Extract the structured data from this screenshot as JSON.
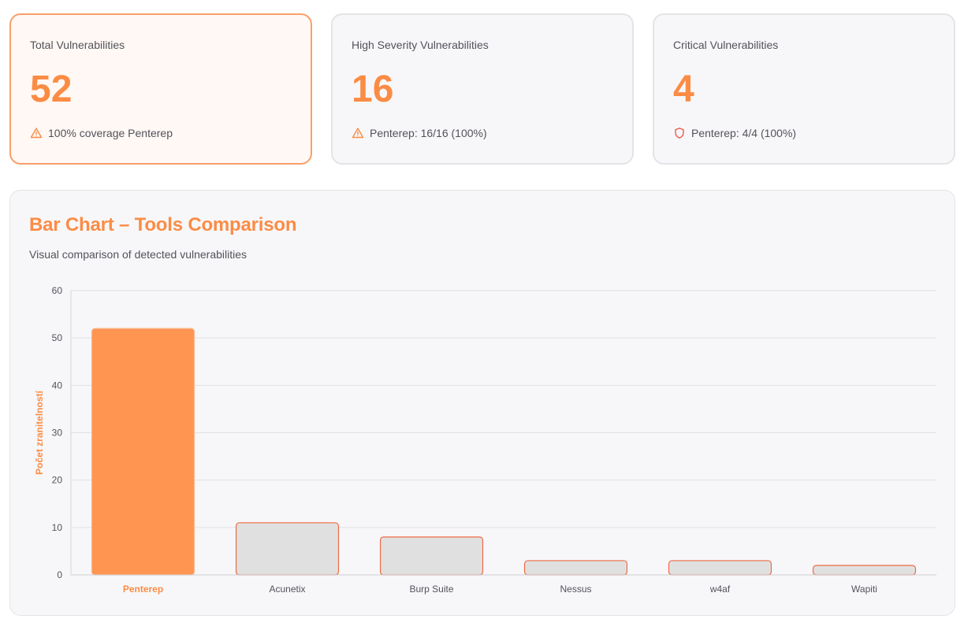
{
  "cards": [
    {
      "label": "Total Vulnerabilities",
      "value": "52",
      "footer": "100% coverage Penterep",
      "icon": "warning-triangle-icon",
      "active": true
    },
    {
      "label": "High Severity Vulnerabilities",
      "value": "16",
      "footer": "Penterep: 16/16 (100%)",
      "icon": "warning-triangle-icon",
      "active": false
    },
    {
      "label": "Critical Vulnerabilities",
      "value": "4",
      "footer": "Penterep: 4/4 (100%)",
      "icon": "shield-icon",
      "active": false
    }
  ],
  "colors": {
    "accent": "#fb8c45",
    "bar_highlight": "#ff9551",
    "bar_default": "#e0e0e0",
    "bar_border": "#f06a45",
    "shield": "#ef5a4a"
  },
  "chart_data": {
    "type": "bar",
    "title": "Bar Chart – Tools Comparison",
    "subtitle": "Visual comparison of detected vulnerabilities",
    "ylabel": "Počet zranitelností",
    "xlabel": "",
    "categories": [
      "Penterep",
      "Acunetix",
      "Burp Suite",
      "Nessus",
      "w4af",
      "Wapiti"
    ],
    "values": [
      52,
      11,
      8,
      3,
      3,
      2
    ],
    "highlight": "Penterep",
    "ylim": [
      0,
      60
    ],
    "yticks": [
      0,
      10,
      20,
      30,
      40,
      50,
      60
    ],
    "grid": true,
    "legend": "none"
  }
}
